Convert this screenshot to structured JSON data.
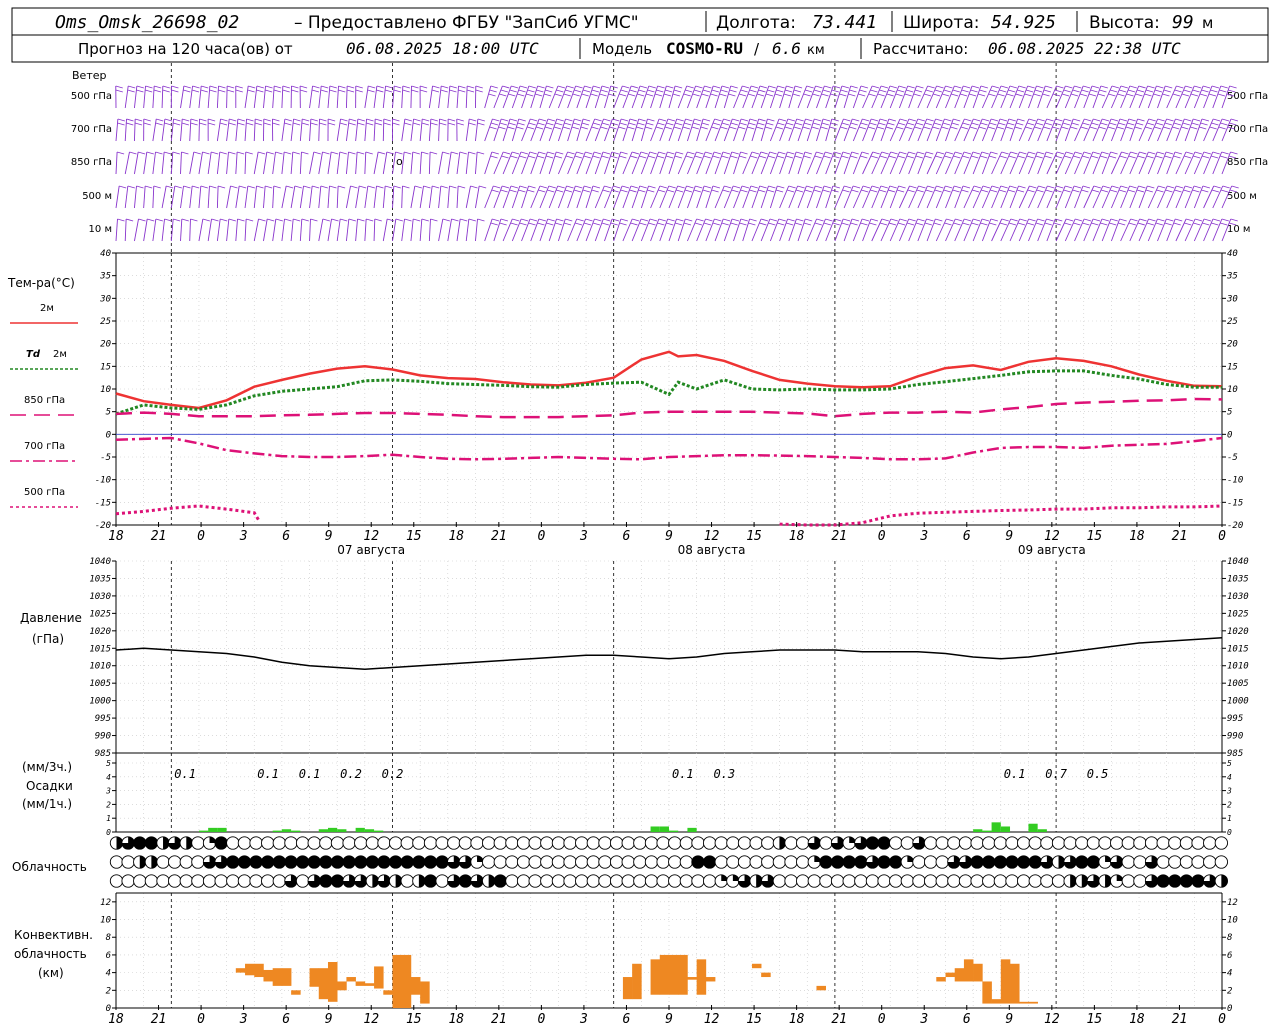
{
  "header": {
    "station": "Oms_Omsk_26698_02",
    "provided_by": "– Предоставлено ФГБУ \"ЗапСиб УГМС\"",
    "lon_label": "Долгота:",
    "lon_value": "73.441",
    "lat_label": "Широта:",
    "lat_value": "54.925",
    "alt_label": "Высота:",
    "alt_value": "99",
    "alt_unit": "м",
    "forecast_label": "Прогноз на 120 часа(ов) от",
    "forecast_from": "06.08.2025 18:00 UTC",
    "model_label": "Модель",
    "model_name": "COSMO-RU",
    "model_res": "6.6",
    "model_res_unit": "км",
    "computed_label": "Рассчитано:",
    "computed_at": "06.08.2025 22:38 UTC"
  },
  "hour_ticks": [
    "18",
    "21",
    "0",
    "3",
    "6",
    "9",
    "12",
    "15",
    "18",
    "21",
    "0",
    "3",
    "6",
    "9",
    "12",
    "15",
    "18",
    "21",
    "0",
    "3",
    "6",
    "9",
    "12",
    "15",
    "18",
    "21",
    "0"
  ],
  "dates": [
    "07 августа",
    "08 августа",
    "09 августа"
  ],
  "colors": {
    "wind": "#8833cc",
    "t2m": "#ee3333",
    "td2m": "#228822",
    "t850": "#dd1177",
    "t700": "#dd1177",
    "t500": "#dd1177",
    "pressure": "#000000",
    "precip": "#33cc22",
    "convective": "#ee8822"
  },
  "wind": {
    "title": "Ветер",
    "levels": [
      "500 гПа",
      "700 гПа",
      "850 гПа",
      "500 м",
      "10 м"
    ],
    "calm_label": "o"
  },
  "temperature_panel": {
    "title": "Тем-ра(°C)",
    "legend": [
      {
        "label": "2м",
        "label_prefix": ""
      },
      {
        "label": "2м",
        "label_prefix": "Td"
      },
      {
        "label": "850 гПа",
        "label_prefix": ""
      },
      {
        "label": "700 гПа",
        "label_prefix": ""
      },
      {
        "label": "500 гПа",
        "label_prefix": ""
      }
    ]
  },
  "pressure_panel": {
    "title": "Давление",
    "unit": "(гПа)"
  },
  "precip_panel": {
    "title1": "(мм/3ч.)",
    "title2": "Осадки",
    "title3": "(мм/1ч.)"
  },
  "cloud_panel": {
    "title": "Облачность",
    "layers": [
      "upper",
      "middle",
      "low"
    ],
    "rows": [
      "0.5,0.75,1,1,0.5,0.75,0.5,0,0.25,1,0,0,0,0,0,0,0,0,0,0,0,0,0,0,0,0,0,0,0,0,0,0,0,0,0,0,0,0,0,0,0,0,0,0,0,0,0,0,0,0,0,0,0,0,0,0,0,0.5,0,0,0.75,0,0.75,0.25,0.75,1,1,0,0,0.75,0,0,0,0,0,0,0,0,0,0,0,0,0,0,0,0,0,0,0,0,0,0,0,0,0,0",
      "0,0,0.5,0.5,0,0,0,0,0.75,0.75,1,1,1,1,1,1,1,1,1,1,1,1,1,1,1,1,1,1,1,0.75,0.75,0.25,0,0,0,0,0,0,0,0,0,0,0,0,0,0,0,0,0,0,1,1,0,0,0,0,0,0,0,0,0.25,1,1,1,1,0.75,1,1,0.25,0,0,0,0.75,0.75,1,1,1,1,1,1,0.75,0.5,0.75,1,1,0.25,0.75,0,0,0.75,0,0,0,0,0,0,0,0,0,0,0",
      "0,0,0,0,0,0,0,0,0,0,0,0,0,0,0,0.75,0,0.75,1,1,0.75,0.75,0.5,0.75,0.5,0,0.5,1,0,0.75,1,0.75,0.5,1,0,0,0,0,0,0,0,0,0,0,0,0,0,0,0,0,0,0,0.25,0.25,0.75,0.5,0.75,0,0,0,0,0,0,0,0,0,0,0,0,0,0,0,0,0,0,0,0,0,0,0,0,0,0.5,0.5,0.75,0.5,0.25,0,0,0.75,1,1,1,1,0.75,0.5,0.75,0.5,0.75,0.5,0,0,0.75,0.5,1,1,1,1,1"
    ]
  },
  "convective_panel": {
    "title1": "Конвективн.",
    "title2": "облачность",
    "title3": "(км)"
  },
  "chart_data": [
    {
      "type": "line",
      "name": "temperature",
      "x_unit": "hours since 06.08.2025 18:00 UTC",
      "ylim": [
        -20,
        40
      ],
      "yticks": [
        -20,
        -15,
        -10,
        -5,
        0,
        5,
        10,
        15,
        20,
        25,
        30,
        35,
        40
      ],
      "series": [
        {
          "name": "2м",
          "x": [
            0,
            3,
            6,
            9,
            12,
            15,
            18,
            21,
            24,
            27,
            30,
            33,
            36,
            39,
            42,
            45,
            48,
            51,
            54,
            57,
            60,
            61,
            63,
            66,
            69,
            72,
            75,
            78,
            81,
            84,
            87,
            90,
            93,
            96,
            99,
            102,
            105,
            108,
            111,
            114,
            117,
            120
          ],
          "values": [
            9,
            7.3,
            6.5,
            5.8,
            7.5,
            10.5,
            12,
            13.4,
            14.5,
            15,
            14.3,
            13,
            12.4,
            12.2,
            11.5,
            11,
            10.8,
            11.4,
            12.5,
            16.5,
            18.2,
            17.2,
            17.5,
            16.2,
            14,
            12,
            11.2,
            10.6,
            10.4,
            10.6,
            12.8,
            14.6,
            15.2,
            14.2,
            16,
            16.8,
            16.2,
            15,
            13.2,
            11.8,
            10.7,
            10.6
          ]
        },
        {
          "name": "Td 2м",
          "x": [
            0,
            3,
            6,
            9,
            12,
            15,
            18,
            21,
            24,
            27,
            30,
            33,
            36,
            39,
            42,
            45,
            48,
            51,
            54,
            57,
            60,
            61,
            63,
            66,
            69,
            72,
            75,
            78,
            81,
            84,
            87,
            90,
            93,
            96,
            99,
            102,
            105,
            108,
            111,
            114,
            117,
            120
          ],
          "values": [
            4.5,
            6.5,
            5.8,
            5.5,
            6.5,
            8.5,
            9.5,
            10,
            10.5,
            11.8,
            12,
            11.7,
            11.2,
            11,
            10.8,
            10.5,
            10.4,
            11,
            11.3,
            11.5,
            8.8,
            11.5,
            10,
            12,
            10,
            9.8,
            10,
            9.8,
            9.8,
            10,
            11,
            11.6,
            12.3,
            13,
            13.8,
            14,
            14,
            13,
            12.2,
            11,
            10.4,
            10.4
          ]
        },
        {
          "name": "850 гПа",
          "x": [
            0,
            3,
            6,
            9,
            12,
            15,
            18,
            21,
            24,
            27,
            30,
            33,
            36,
            39,
            42,
            45,
            48,
            51,
            54,
            57,
            60,
            63,
            66,
            69,
            72,
            75,
            78,
            81,
            84,
            87,
            90,
            93,
            96,
            99,
            102,
            105,
            108,
            111,
            114,
            117,
            120
          ],
          "values": [
            4.5,
            4.8,
            4.5,
            4,
            4,
            4,
            4.2,
            4.3,
            4.5,
            4.7,
            4.7,
            4.5,
            4.3,
            4,
            3.8,
            3.8,
            3.8,
            4,
            4.2,
            4.8,
            5,
            5,
            5,
            5,
            4.8,
            4.6,
            4,
            4.5,
            4.8,
            4.8,
            5,
            4.8,
            5.5,
            6,
            6.7,
            7,
            7.2,
            7.4,
            7.5,
            7.8,
            7.7
          ]
        },
        {
          "name": "700 гПа",
          "x": [
            0,
            3,
            6,
            9,
            12,
            15,
            18,
            21,
            24,
            27,
            30,
            33,
            36,
            39,
            42,
            45,
            48,
            51,
            54,
            57,
            60,
            63,
            66,
            69,
            72,
            75,
            78,
            81,
            84,
            87,
            90,
            93,
            96,
            99,
            102,
            105,
            108,
            111,
            114,
            117,
            120
          ],
          "values": [
            -1.2,
            -1,
            -0.8,
            -2,
            -3.5,
            -4.2,
            -4.8,
            -5,
            -5,
            -4.8,
            -4.5,
            -5,
            -5.4,
            -5.5,
            -5.4,
            -5.2,
            -5,
            -5.2,
            -5.4,
            -5.5,
            -5,
            -4.8,
            -4.6,
            -4.6,
            -4.7,
            -4.8,
            -5,
            -5.2,
            -5.5,
            -5.5,
            -5.3,
            -4,
            -3,
            -2.8,
            -2.8,
            -3,
            -2.5,
            -2.3,
            -2.1,
            -1.5,
            -0.8
          ]
        },
        {
          "name": "500 гПа",
          "x": [
            0,
            3,
            6,
            9,
            12,
            15,
            15.5,
            71,
            72,
            75,
            78,
            81,
            84,
            87,
            90,
            93,
            96,
            99,
            102,
            105,
            108,
            111,
            114,
            117,
            120
          ],
          "values": [
            -17.5,
            -17,
            -16.3,
            -15.8,
            -16.5,
            -17.3,
            -19,
            -19,
            -19.8,
            -20,
            -20,
            -19.5,
            -18,
            -17.4,
            -17.2,
            -17,
            -16.8,
            -16.7,
            -16.5,
            -16.5,
            -16.2,
            -16.2,
            -16,
            -16,
            -15.8
          ]
        }
      ]
    },
    {
      "type": "line",
      "name": "pressure",
      "ylim": [
        985,
        1040
      ],
      "yticks": [
        985,
        990,
        995,
        1000,
        1005,
        1010,
        1015,
        1020,
        1025,
        1030,
        1035,
        1040
      ],
      "series": [
        {
          "name": "Давление",
          "x": [
            0,
            3,
            6,
            9,
            12,
            15,
            18,
            21,
            24,
            27,
            30,
            33,
            36,
            39,
            42,
            45,
            48,
            51,
            54,
            57,
            60,
            63,
            66,
            69,
            72,
            75,
            78,
            81,
            84,
            87,
            90,
            93,
            96,
            99,
            102,
            105,
            108,
            111,
            114,
            117,
            120
          ],
          "values": [
            1014.5,
            1015,
            1014.5,
            1014,
            1013.5,
            1012.5,
            1011,
            1010,
            1009.5,
            1009,
            1009.5,
            1010,
            1010.5,
            1011,
            1011.5,
            1012,
            1012.5,
            1013,
            1013,
            1012.5,
            1012,
            1012.5,
            1013.5,
            1014,
            1014.5,
            1014.5,
            1014.5,
            1014,
            1014,
            1014,
            1013.5,
            1012.5,
            1012,
            1012.5,
            1013.5,
            1014.5,
            1015.5,
            1016.5,
            1017,
            1017.5,
            1018
          ]
        }
      ]
    },
    {
      "type": "bar",
      "name": "precipitation",
      "ylim": [
        0,
        5
      ],
      "yticks": [
        0,
        1,
        2,
        3,
        4,
        5
      ],
      "labels_3h": [
        {
          "x": 7.5,
          "text": "0.1"
        },
        {
          "x": 16.5,
          "text": "0.1"
        },
        {
          "x": 21,
          "text": "0.1"
        },
        {
          "x": 25.5,
          "text": "0.2"
        },
        {
          "x": 30,
          "text": "0.2"
        },
        {
          "x": 61.5,
          "text": "0.1"
        },
        {
          "x": 66,
          "text": "0.3"
        },
        {
          "x": 97.5,
          "text": "0.1"
        },
        {
          "x": 102,
          "text": "0.7"
        },
        {
          "x": 106.5,
          "text": "0.5"
        }
      ],
      "bars_1h": {
        "x": [
          9,
          10,
          11,
          17,
          18,
          19,
          22,
          23,
          24,
          26,
          27,
          28,
          58,
          59,
          60,
          62,
          93,
          94,
          95,
          96,
          99,
          100
        ],
        "values": [
          0.1,
          0.3,
          0.3,
          0.1,
          0.2,
          0.1,
          0.2,
          0.3,
          0.2,
          0.3,
          0.2,
          0.1,
          0.4,
          0.4,
          0.1,
          0.3,
          0.2,
          0.1,
          0.7,
          0.4,
          0.6,
          0.2
        ]
      }
    },
    {
      "type": "bar",
      "name": "convective_cloud",
      "ylim": [
        0,
        13
      ],
      "yticks": [
        0,
        2,
        4,
        6,
        8,
        10,
        12
      ],
      "bars": [
        {
          "x": 13,
          "bottom": 4,
          "top": 4.5
        },
        {
          "x": 14,
          "bottom": 3.7,
          "top": 5
        },
        {
          "x": 15,
          "bottom": 3.5,
          "top": 5
        },
        {
          "x": 16,
          "bottom": 3,
          "top": 4.3
        },
        {
          "x": 17,
          "bottom": 2.5,
          "top": 4.5
        },
        {
          "x": 18,
          "bottom": 2.5,
          "top": 4.5
        },
        {
          "x": 19,
          "bottom": 1.5,
          "top": 2
        },
        {
          "x": 21,
          "bottom": 2.4,
          "top": 4.5
        },
        {
          "x": 22,
          "bottom": 1,
          "top": 4.5
        },
        {
          "x": 23,
          "bottom": 0.7,
          "top": 5.2
        },
        {
          "x": 24,
          "bottom": 2,
          "top": 3
        },
        {
          "x": 25,
          "bottom": 3,
          "top": 3.5
        },
        {
          "x": 26,
          "bottom": 2.5,
          "top": 3
        },
        {
          "x": 27,
          "bottom": 2.5,
          "top": 2.8
        },
        {
          "x": 28,
          "bottom": 2.2,
          "top": 4.7
        },
        {
          "x": 29,
          "bottom": 1.5,
          "top": 2
        },
        {
          "x": 30,
          "bottom": 0,
          "top": 6
        },
        {
          "x": 31,
          "bottom": 0,
          "top": 6
        },
        {
          "x": 32,
          "bottom": 1.5,
          "top": 3.5
        },
        {
          "x": 33,
          "bottom": 0.5,
          "top": 3
        },
        {
          "x": 55,
          "bottom": 1,
          "top": 3.5
        },
        {
          "x": 56,
          "bottom": 1,
          "top": 5
        },
        {
          "x": 58,
          "bottom": 1.5,
          "top": 5.5
        },
        {
          "x": 59,
          "bottom": 1.5,
          "top": 6
        },
        {
          "x": 60,
          "bottom": 1.5,
          "top": 6
        },
        {
          "x": 61,
          "bottom": 1.5,
          "top": 6
        },
        {
          "x": 62,
          "bottom": 3.2,
          "top": 3.5
        },
        {
          "x": 63,
          "bottom": 1.5,
          "top": 5.5
        },
        {
          "x": 64,
          "bottom": 3,
          "top": 3.5
        },
        {
          "x": 69,
          "bottom": 4.5,
          "top": 5
        },
        {
          "x": 70,
          "bottom": 3.5,
          "top": 4
        },
        {
          "x": 76,
          "bottom": 2,
          "top": 2.5
        },
        {
          "x": 89,
          "bottom": 3,
          "top": 3.5
        },
        {
          "x": 90,
          "bottom": 3.5,
          "top": 4
        },
        {
          "x": 91,
          "bottom": 3,
          "top": 4.5
        },
        {
          "x": 92,
          "bottom": 3,
          "top": 5.5
        },
        {
          "x": 93,
          "bottom": 3,
          "top": 5
        },
        {
          "x": 94,
          "bottom": 0.5,
          "top": 3
        },
        {
          "x": 95,
          "bottom": 0.5,
          "top": 1
        },
        {
          "x": 96,
          "bottom": 0.5,
          "top": 5.5
        },
        {
          "x": 97,
          "bottom": 0.5,
          "top": 5
        },
        {
          "x": 98,
          "bottom": 0.5,
          "top": 0.7
        },
        {
          "x": 99,
          "bottom": 0.5,
          "top": 0.7
        }
      ]
    }
  ]
}
